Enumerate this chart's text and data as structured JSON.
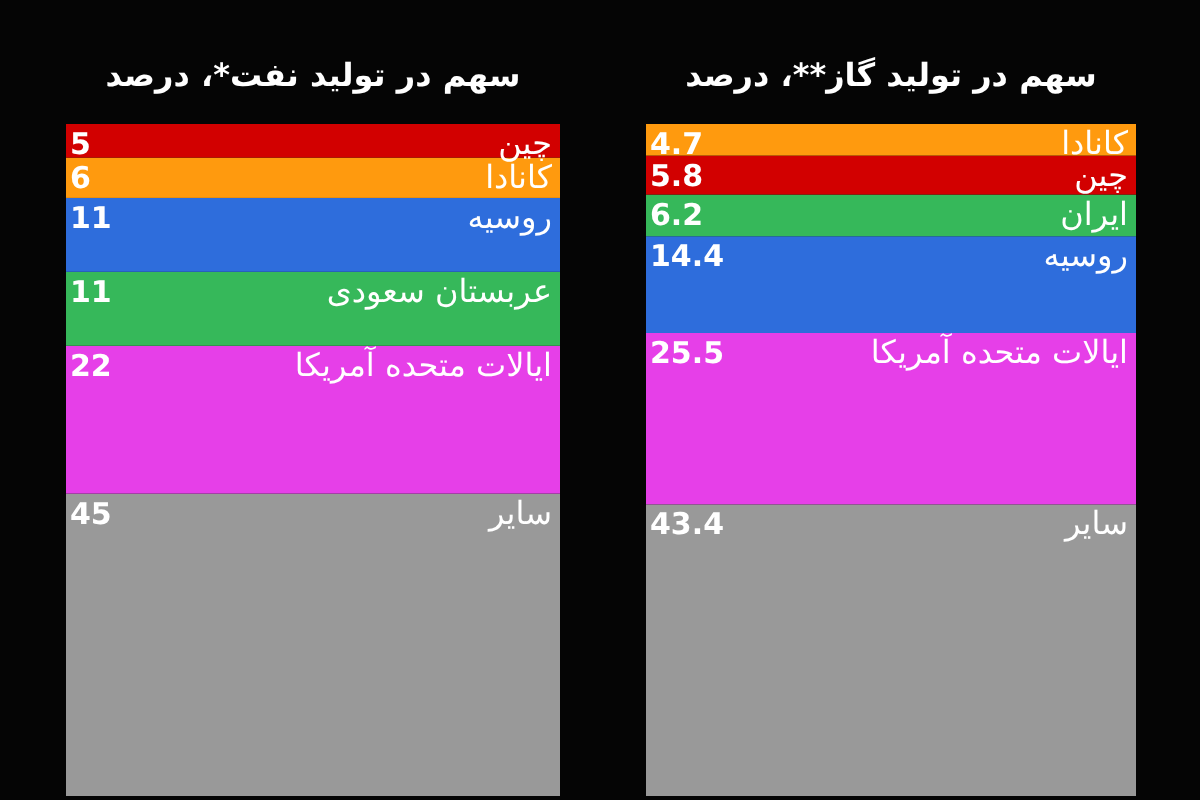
{
  "chart_data": [
    {
      "type": "bar",
      "title": "سهم در تولید گاز**، درصد",
      "categories": [
        null
      ],
      "stacked": true,
      "data_labels": true,
      "ylim": [
        0,
        100
      ],
      "tick_labels": false,
      "series": [
        {
          "name": "سایر",
          "color": "#999999",
          "values": [
            43.4
          ]
        },
        {
          "name": "ایالات متحده آمریکا",
          "color": "#e63fe8",
          "values": [
            25.5
          ]
        },
        {
          "name": "روسیه",
          "color": "#2e6ddc",
          "values": [
            14.4
          ]
        },
        {
          "name": "ایران",
          "color": "#36b85a",
          "values": [
            6.2
          ]
        },
        {
          "name": "چین",
          "color": "#d20000",
          "values": [
            5.8
          ]
        },
        {
          "name": "کانادا",
          "color": "#ff9a0e",
          "values": [
            4.7
          ]
        }
      ]
    },
    {
      "type": "bar",
      "title": "سهم در تولید نفت*، درصد",
      "categories": [
        null
      ],
      "stacked": true,
      "data_labels": true,
      "ylim": [
        0,
        100
      ],
      "tick_labels": false,
      "series": [
        {
          "name": "سایر",
          "color": "#999999",
          "values": [
            45
          ]
        },
        {
          "name": "ایالات متحده آمریکا",
          "color": "#e63fe8",
          "values": [
            22
          ]
        },
        {
          "name": "عربستان سعودی",
          "color": "#36b85a",
          "values": [
            11
          ]
        },
        {
          "name": "روسیه",
          "color": "#2e6ddc",
          "values": [
            11
          ]
        },
        {
          "name": "کانادا",
          "color": "#ff9a0e",
          "values": [
            6
          ]
        },
        {
          "name": "چین",
          "color": "#d20000",
          "values": [
            5
          ]
        }
      ]
    }
  ]
}
